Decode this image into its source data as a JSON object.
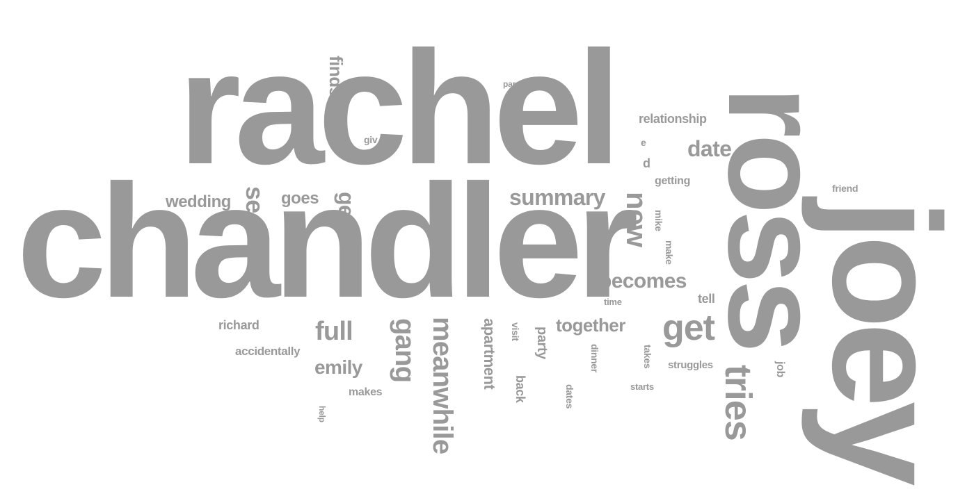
{
  "colors": {
    "word": "#999999",
    "background": "#ffffff"
  },
  "words": {
    "rachel": "rachel",
    "chandler": "chandler",
    "ross": "ross",
    "joey": "joey",
    "finds": "finds",
    "par": "par",
    "relationship": "relationship",
    "giv": "giv",
    "date": "date",
    "e": "e",
    "d": "d",
    "getting": "getting",
    "friend": "friend",
    "wedding": "wedding",
    "see": "see",
    "goes": "goes",
    "gets": "gets",
    "summary": "summary",
    "new": "new",
    "mike": "mike",
    "make": "make",
    "becomes": "becomes",
    "time": "time",
    "tell": "tell",
    "richard": "richard",
    "full": "full",
    "gang": "gang",
    "meanwhile": "meanwhile",
    "apartment": "apartment",
    "visit": "visit",
    "party": "party",
    "together": "together",
    "get": "get",
    "accidentally": "accidentally",
    "emily": "emily",
    "dinner": "dinner",
    "takes": "takes",
    "struggles": "struggles",
    "job": "job",
    "tries": "tries",
    "makes": "makes",
    "back": "back",
    "dates": "dates",
    "starts": "starts",
    "help": "help"
  }
}
